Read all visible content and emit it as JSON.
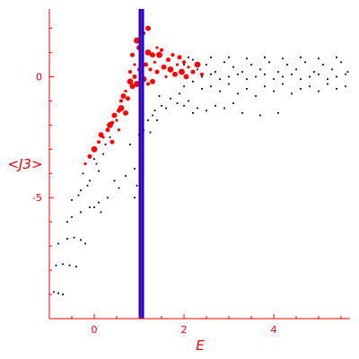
{
  "chart_data": {
    "type": "scatter",
    "title": "",
    "xlabel": "E",
    "ylabel": "<J3>",
    "xlim": [
      -1,
      5.7
    ],
    "ylim": [
      -10,
      2.8
    ],
    "grid": false,
    "colors": {
      "axis": "#e8000b",
      "series_red": "#ff0000",
      "series_black": "#000000",
      "vline_outer": "#0000ff",
      "vline_inner": "#ff0000"
    },
    "x_ticks": [
      {
        "value": 0,
        "label": "0"
      },
      {
        "value": 2,
        "label": "2"
      },
      {
        "value": 4,
        "label": "4"
      }
    ],
    "y_ticks": [
      {
        "value": 0,
        "label": "0"
      },
      {
        "value": -5,
        "label": "-5"
      }
    ],
    "vertical_line": {
      "x": 1.05
    },
    "series": [
      {
        "color": "#000000",
        "marker": "small",
        "points": [
          [
            -0.9,
            -8.9
          ],
          [
            -0.8,
            -8.95
          ],
          [
            -0.7,
            -9.0
          ],
          [
            -0.85,
            -7.8
          ],
          [
            -0.7,
            -7.75
          ],
          [
            -0.55,
            -7.8
          ],
          [
            -0.4,
            -7.85
          ],
          [
            -0.8,
            -6.9
          ],
          [
            -0.6,
            -6.7
          ],
          [
            -0.45,
            -6.65
          ],
          [
            -0.3,
            -6.75
          ],
          [
            -0.2,
            -6.9
          ],
          [
            -0.6,
            -6.0
          ],
          [
            -0.5,
            -5.8
          ],
          [
            -0.3,
            -5.6
          ],
          [
            -0.1,
            -5.4
          ],
          [
            0.1,
            -5.2
          ],
          [
            -0.5,
            -5.1
          ],
          [
            -0.3,
            -4.7
          ],
          [
            -0.1,
            -4.3
          ],
          [
            0.1,
            -3.9
          ],
          [
            -0.35,
            -4.9
          ],
          [
            -0.15,
            -4.5
          ],
          [
            0.05,
            -3.6
          ],
          [
            0.2,
            -3.2
          ],
          [
            -0.25,
            -4.0
          ],
          [
            0.0,
            -3.4
          ],
          [
            0.25,
            -2.8
          ],
          [
            0.35,
            -2.5
          ],
          [
            0.0,
            -5.4
          ],
          [
            0.15,
            -5.6
          ],
          [
            0.3,
            -5.0
          ],
          [
            0.45,
            -4.3
          ],
          [
            0.55,
            -4.6
          ],
          [
            0.7,
            -4.1
          ],
          [
            0.9,
            -3.8
          ],
          [
            0.95,
            -4.5
          ],
          [
            0.9,
            -5.0
          ],
          [
            0.8,
            -2.8
          ],
          [
            1.0,
            -2.4
          ],
          [
            1.1,
            -2.2
          ],
          [
            1.2,
            -1.8
          ],
          [
            1.25,
            -2.3
          ],
          [
            1.35,
            -1.4
          ],
          [
            1.5,
            -1.2
          ],
          [
            1.6,
            -1.3
          ],
          [
            1.4,
            -1.8
          ],
          [
            1.3,
            -1.6
          ],
          [
            1.45,
            -0.8
          ],
          [
            1.7,
            -0.9
          ],
          [
            1.85,
            -1.1
          ],
          [
            2.0,
            -1.2
          ],
          [
            2.1,
            -1.0
          ],
          [
            2.3,
            -1.3
          ],
          [
            2.5,
            -1.4
          ],
          [
            2.7,
            -1.2
          ],
          [
            2.9,
            -1.3
          ],
          [
            3.1,
            -1.1
          ],
          [
            2.2,
            -0.2
          ],
          [
            2.4,
            -0.5
          ],
          [
            2.6,
            -0.4
          ],
          [
            2.8,
            -0.6
          ],
          [
            3.0,
            -0.3
          ],
          [
            3.2,
            -0.7
          ],
          [
            3.4,
            -0.5
          ],
          [
            3.6,
            -0.8
          ],
          [
            3.8,
            -0.4
          ],
          [
            4.0,
            -0.6
          ],
          [
            4.2,
            -0.3
          ],
          [
            4.4,
            -0.7
          ],
          [
            4.6,
            -0.5
          ],
          [
            4.8,
            -0.4
          ],
          [
            5.0,
            -0.6
          ],
          [
            5.2,
            -0.3
          ],
          [
            5.4,
            -0.5
          ],
          [
            5.6,
            -0.4
          ],
          [
            2.3,
            0.3
          ],
          [
            2.5,
            0.5
          ],
          [
            2.7,
            0.2
          ],
          [
            2.9,
            0.6
          ],
          [
            3.1,
            0.4
          ],
          [
            3.3,
            0.2
          ],
          [
            3.5,
            0.5
          ],
          [
            3.7,
            0.3
          ],
          [
            3.9,
            0.6
          ],
          [
            4.1,
            0.2
          ],
          [
            4.3,
            0.5
          ],
          [
            4.5,
            0.3
          ],
          [
            4.7,
            0.6
          ],
          [
            4.9,
            0.2
          ],
          [
            5.1,
            0.5
          ],
          [
            5.3,
            0.3
          ],
          [
            5.5,
            0.6
          ],
          [
            5.65,
            0.2
          ],
          [
            2.4,
            0.0
          ],
          [
            2.6,
            0.1
          ],
          [
            2.8,
            -0.1
          ],
          [
            3.0,
            0.0
          ],
          [
            3.2,
            0.1
          ],
          [
            3.4,
            -0.1
          ],
          [
            3.6,
            0.0
          ],
          [
            3.8,
            0.1
          ],
          [
            4.0,
            -0.1
          ],
          [
            4.2,
            0.0
          ],
          [
            4.4,
            0.1
          ],
          [
            4.6,
            -0.1
          ],
          [
            4.8,
            0.0
          ],
          [
            5.0,
            0.1
          ],
          [
            5.2,
            -0.1
          ],
          [
            5.4,
            0.0
          ],
          [
            5.6,
            0.1
          ],
          [
            2.2,
            0.7
          ],
          [
            2.6,
            0.8
          ],
          [
            3.0,
            0.8
          ],
          [
            3.4,
            0.75
          ],
          [
            3.8,
            0.8
          ],
          [
            4.2,
            0.75
          ],
          [
            4.6,
            0.8
          ],
          [
            5.0,
            0.75
          ],
          [
            5.4,
            0.8
          ],
          [
            3.3,
            -1.5
          ],
          [
            3.7,
            -1.6
          ],
          [
            4.1,
            -1.5
          ],
          [
            2.2,
            -1.5
          ],
          [
            1.9,
            0.2
          ],
          [
            2.0,
            0.5
          ],
          [
            2.1,
            0.8
          ],
          [
            2.0,
            -0.4
          ],
          [
            1.9,
            -0.7
          ]
        ]
      },
      {
        "color": "#ff0000",
        "marker": "large",
        "points": [
          [
            -0.2,
            -3.6
          ],
          [
            -0.1,
            -3.3
          ],
          [
            0.0,
            -3.0
          ],
          [
            0.1,
            -2.7
          ],
          [
            0.15,
            -2.4
          ],
          [
            0.2,
            -2.5
          ],
          [
            0.3,
            -2.2
          ],
          [
            0.35,
            -2.0
          ],
          [
            0.4,
            -1.9
          ],
          [
            0.45,
            -1.6
          ],
          [
            0.5,
            -1.8
          ],
          [
            0.55,
            -1.4
          ],
          [
            0.6,
            -1.3
          ],
          [
            0.6,
            -1.0
          ],
          [
            0.65,
            -0.8
          ],
          [
            0.7,
            -0.6
          ],
          [
            0.75,
            -0.9
          ],
          [
            0.8,
            -0.2
          ],
          [
            0.8,
            0.2
          ],
          [
            0.85,
            -0.4
          ],
          [
            0.9,
            0.5
          ],
          [
            0.9,
            0.0
          ],
          [
            0.95,
            -0.3
          ],
          [
            1.0,
            0.3
          ],
          [
            1.0,
            1.2
          ],
          [
            1.05,
            0.8
          ],
          [
            1.15,
            0.5
          ],
          [
            1.2,
            1.0
          ],
          [
            1.25,
            0.3
          ],
          [
            1.3,
            -0.2
          ],
          [
            1.35,
            0.6
          ],
          [
            1.4,
            0.2
          ],
          [
            1.45,
            0.9
          ],
          [
            1.5,
            1.1
          ],
          [
            1.55,
            0.4
          ],
          [
            1.6,
            0.0
          ],
          [
            1.65,
            0.7
          ],
          [
            1.7,
            0.3
          ],
          [
            1.75,
            0.9
          ],
          [
            1.8,
            0.1
          ],
          [
            1.85,
            0.5
          ],
          [
            1.9,
            0.8
          ],
          [
            1.95,
            0.2
          ],
          [
            2.0,
            0.6
          ],
          [
            2.05,
            0.0
          ],
          [
            2.1,
            0.4
          ],
          [
            2.2,
            0.2
          ],
          [
            2.3,
            0.5
          ],
          [
            2.4,
            0.1
          ],
          [
            0.7,
            -1.5
          ],
          [
            0.55,
            -2.2
          ],
          [
            0.4,
            -2.7
          ],
          [
            1.1,
            -0.1
          ],
          [
            1.2,
            -0.3
          ],
          [
            1.3,
            0.9
          ],
          [
            1.4,
            1.2
          ],
          [
            0.85,
            0.9
          ],
          [
            0.95,
            1.5
          ],
          [
            1.1,
            1.8
          ],
          [
            1.2,
            2.0
          ]
        ]
      }
    ]
  }
}
